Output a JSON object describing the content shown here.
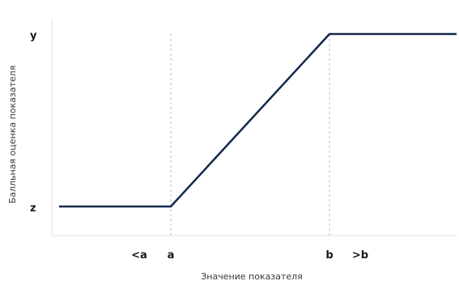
{
  "chart_data": {
    "type": "line",
    "title": "",
    "xlabel": "Значение показателя",
    "ylabel": "Балльная оценка показателя",
    "x_ticks": [
      "<a",
      "a",
      "b",
      ">b"
    ],
    "y_ticks": [
      "y",
      "z"
    ],
    "series": [
      {
        "x": [
          "<a",
          "a",
          "b",
          ">b"
        ],
        "y": [
          "z",
          "z",
          "y",
          "y"
        ]
      }
    ],
    "reference_lines": [
      "a",
      "b"
    ],
    "grid": false,
    "line_color": "#13294b",
    "reference_line_color": "#bdbdbd",
    "axis_color": "#e3e3e3"
  }
}
